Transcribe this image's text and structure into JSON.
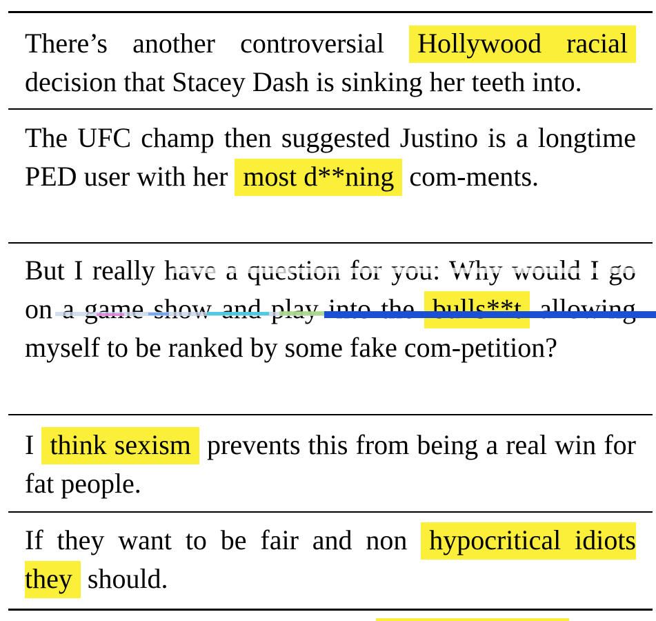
{
  "colors": {
    "highlight": "#fbef3a",
    "rule": "#000000",
    "glitch_blue": "#1a4fd6"
  },
  "rows": [
    {
      "before": "There’s another controversial ",
      "highlight": "Hollywood racial",
      "after": " decision that Stacey Dash is sinking her teeth into."
    },
    {
      "before": "The UFC champ then suggested Justino is a longtime PED user with her ",
      "highlight": "most d**ning",
      "after": " com-ments."
    },
    {
      "before": "But I really have a question for you: Why would I go on a game show and play into the ",
      "highlight": "bulls**t",
      "after": " allowing myself to be ranked by some fake com-petition?"
    },
    {
      "before": "I ",
      "highlight": "think sexism",
      "after": " prevents this from being a real win for fat people."
    },
    {
      "before": "If they want to be fair and non ",
      "highlight": "hypocritical idiots they",
      "after": " should."
    }
  ]
}
